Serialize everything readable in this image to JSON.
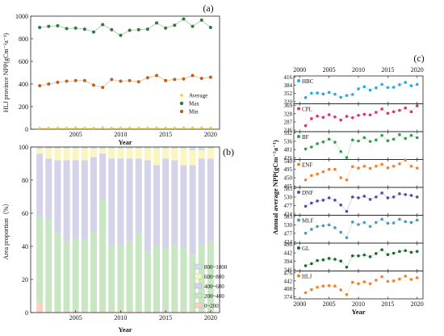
{
  "chart_data": [
    {
      "id": "a",
      "type": "line",
      "panel_label": "(a)",
      "xlabel": "Year",
      "ylabel": "HLJ province NPP(gCm⁻²a⁻¹)",
      "xlim": [
        2000,
        2021
      ],
      "ylim": [
        0,
        1000
      ],
      "x_ticks": [
        2005,
        2010,
        2015,
        2020
      ],
      "y_ticks": [
        0,
        200,
        400,
        600,
        800,
        1000
      ],
      "x": [
        2001,
        2002,
        2003,
        2004,
        2005,
        2006,
        2007,
        2008,
        2009,
        2010,
        2011,
        2012,
        2013,
        2014,
        2015,
        2016,
        2017,
        2018,
        2019,
        2020
      ],
      "series": [
        {
          "name": "Average",
          "color": "#f2cf2a",
          "marker": "diamond",
          "values": [
            10,
            12,
            12,
            11,
            13,
            11,
            10,
            15,
            12,
            11,
            12,
            12,
            12,
            13,
            12,
            12,
            13,
            14,
            13,
            12
          ]
        },
        {
          "name": "Max",
          "color": "#2d7a3a",
          "marker": "circle",
          "values": [
            900,
            910,
            915,
            890,
            895,
            885,
            860,
            925,
            880,
            830,
            875,
            880,
            885,
            940,
            895,
            920,
            975,
            910,
            965,
            900
          ]
        },
        {
          "name": "Min",
          "color": "#c0621a",
          "marker": "circle",
          "values": [
            385,
            400,
            415,
            425,
            430,
            430,
            390,
            370,
            440,
            425,
            430,
            420,
            455,
            475,
            430,
            440,
            445,
            475,
            450,
            460
          ]
        }
      ]
    },
    {
      "id": "b",
      "type": "bar",
      "stacked": true,
      "panel_label": "(b)",
      "xlabel": "Year",
      "ylabel": "Area proportion（%）",
      "xlim": [
        2000,
        2021
      ],
      "ylim": [
        0,
        100
      ],
      "x_ticks": [
        2005,
        2010,
        2015,
        2020
      ],
      "y_ticks": [
        0,
        20,
        40,
        60,
        80,
        100
      ],
      "legend_position": "bottom-right",
      "x": [
        2001,
        2002,
        2003,
        2004,
        2005,
        2006,
        2007,
        2008,
        2009,
        2010,
        2011,
        2012,
        2013,
        2014,
        2015,
        2016,
        2017,
        2018,
        2019,
        2020
      ],
      "series": [
        {
          "name": "0~200",
          "color": "#f7d3bd",
          "values": [
            6,
            1,
            1,
            1,
            1,
            1,
            1,
            1,
            1,
            1,
            1,
            1,
            1,
            1,
            1,
            1,
            1,
            1,
            1,
            1
          ]
        },
        {
          "name": "200~400",
          "color": "#c9e6c2",
          "values": [
            52,
            55,
            47,
            42,
            44,
            43,
            48,
            67,
            40,
            40,
            42,
            47,
            36,
            40,
            38,
            40,
            38,
            34,
            40,
            42
          ]
        },
        {
          "name": "400~600",
          "color": "#d5d3e9",
          "values": [
            38,
            37,
            44,
            49,
            47,
            48,
            45,
            28,
            52,
            52,
            50,
            45,
            55,
            48,
            54,
            51,
            50,
            54,
            52,
            50
          ]
        },
        {
          "name": "600~800",
          "color": "#fbf5bf",
          "values": [
            3,
            6,
            7,
            7,
            7,
            7,
            5,
            3,
            6,
            6,
            6,
            6,
            7,
            10,
            6,
            7,
            10,
            9,
            5,
            6
          ]
        },
        {
          "name": "800~1000",
          "color": "#cfe0f3",
          "values": [
            1,
            1,
            1,
            1,
            1,
            1,
            1,
            1,
            1,
            1,
            1,
            1,
            1,
            1,
            1,
            1,
            1,
            2,
            2,
            1
          ]
        }
      ]
    },
    {
      "id": "c",
      "type": "line",
      "panel_label": "(c)",
      "xlabel": "Year",
      "ylabel": "Annual average NPP(gCm⁻²a⁻¹)",
      "x_ticks": [
        2000,
        2005,
        2010,
        2015,
        2020
      ],
      "xlim": [
        1999,
        2021
      ],
      "x": [
        2001,
        2002,
        2003,
        2004,
        2005,
        2006,
        2007,
        2008,
        2009,
        2010,
        2011,
        2012,
        2013,
        2014,
        2015,
        2016,
        2017,
        2018,
        2019,
        2020
      ],
      "subplots": [
        {
          "name": "HBC",
          "color": "#27a9e1",
          "tick_labels": [
            "416",
            "384",
            "352",
            "320"
          ],
          "ylim": [
            312,
            420
          ],
          "values": [
            336,
            353,
            354,
            350,
            356,
            349,
            337,
            344,
            348,
            370,
            378,
            365,
            374,
            387,
            375,
            376,
            386,
            395,
            382,
            387
          ]
        },
        {
          "name": "CPL",
          "color": "#d6337f",
          "tick_labels": [
            "369",
            "328",
            "287",
            "246"
          ],
          "ylim": [
            238,
            378
          ],
          "values": [
            268,
            303,
            316,
            310,
            323,
            312,
            296,
            315,
            308,
            320,
            325,
            322,
            335,
            352,
            330,
            338,
            345,
            357,
            338,
            368
          ]
        },
        {
          "name": "BF",
          "color": "#2f9e44",
          "tick_labels": [
            "592",
            "536",
            "481",
            "426"
          ],
          "ylim": [
            415,
            600
          ],
          "values": [
            485,
            498,
            520,
            532,
            550,
            530,
            468,
            428,
            545,
            538,
            560,
            535,
            545,
            575,
            540,
            550,
            580,
            555,
            575,
            560
          ]
        },
        {
          "name": "ENF",
          "color": "#e9862e",
          "tick_labels": [
            "540",
            "495",
            "450",
            "405"
          ],
          "ylim": [
            398,
            548
          ],
          "values": [
            438,
            462,
            470,
            482,
            495,
            495,
            450,
            438,
            510,
            502,
            512,
            500,
            512,
            522,
            503,
            512,
            525,
            545,
            512,
            502
          ]
        },
        {
          "name": "DNF",
          "color": "#4b4fa8",
          "tick_labels": [
            "583",
            "530",
            "477",
            "424"
          ],
          "ylim": [
            416,
            590
          ],
          "values": [
            472,
            492,
            505,
            510,
            525,
            510,
            480,
            440,
            530,
            525,
            535,
            515,
            530,
            555,
            525,
            530,
            550,
            545,
            540,
            530
          ]
        },
        {
          "name": "MLF",
          "color": "#4b9bb8",
          "tick_labels": [
            "583",
            "530",
            "477",
            "424"
          ],
          "ylim": [
            416,
            590
          ],
          "values": [
            478,
            502,
            520,
            525,
            530,
            512,
            484,
            450,
            548,
            532,
            545,
            520,
            545,
            565,
            540,
            542,
            565,
            550,
            545,
            560
          ]
        },
        {
          "name": "GL",
          "color": "#1b6b2a",
          "tick_labels": [
            "490",
            "442",
            "394",
            "346"
          ],
          "ylim": [
            338,
            498
          ],
          "values": [
            368,
            380,
            398,
            402,
            410,
            405,
            395,
            360,
            425,
            425,
            430,
            420,
            438,
            460,
            432,
            440,
            450,
            455,
            445,
            450
          ]
        },
        {
          "name": "HLJ",
          "color": "#e9862e",
          "tick_labels": [
            "476",
            "442",
            "408",
            "374"
          ],
          "ylim": [
            366,
            484
          ],
          "values": [
            392,
            405,
            415,
            420,
            422,
            420,
            404,
            384,
            436,
            430,
            438,
            430,
            445,
            460,
            440,
            442,
            450,
            462,
            448,
            455
          ]
        }
      ]
    }
  ]
}
